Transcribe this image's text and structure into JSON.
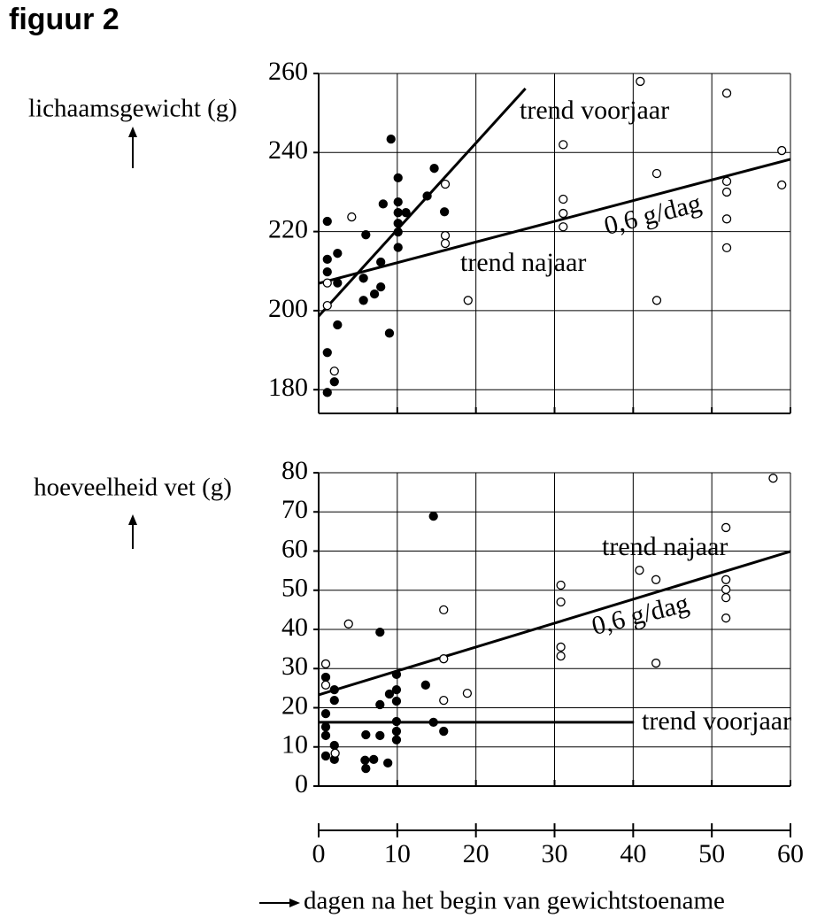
{
  "title": "figuur 2",
  "chart_data": [
    {
      "type": "scatter",
      "y_label": "lichaamsgewicht (g)",
      "xlim": [
        0,
        60
      ],
      "xticks": [
        0,
        10,
        20,
        30,
        40,
        50,
        60
      ],
      "ylim": [
        174,
        260
      ],
      "yticks": [
        180,
        200,
        220,
        240,
        260
      ],
      "grid": true,
      "series": [
        {
          "color": "#000000",
          "filled": true,
          "x": [
            1.1,
            1.1,
            1.1,
            2.4,
            2.4,
            2.4,
            1.1,
            2,
            1.1,
            9.2,
            10.1,
            10.1,
            10.1,
            10.1,
            10.1,
            10.1,
            11.1,
            8.2,
            6,
            13.8,
            14.7,
            16,
            5.7,
            5.7,
            7.1,
            7.9,
            7.9,
            9
          ],
          "values": [
            222.6,
            213,
            209.8,
            214.5,
            207,
            196.4,
            189.4,
            182,
            179.3,
            243.4,
            233.6,
            227.5,
            224.8,
            222.1,
            219.9,
            216,
            224.8,
            227,
            219.2,
            229,
            236,
            225,
            208.2,
            202.6,
            204.2,
            206,
            212.3,
            194.3
          ]
        },
        {
          "color": "#000000",
          "filled": false,
          "x": [
            1.1,
            1.1,
            2,
            4.2,
            16.1,
            16.1,
            16.1,
            19,
            31.1,
            31.1,
            31.1,
            31.1,
            40.9,
            43,
            43,
            51.9,
            51.9,
            51.9,
            51.9,
            51.9,
            58.9,
            58.9
          ],
          "values": [
            207,
            201.3,
            184.7,
            223.7,
            232,
            219,
            217,
            202.6,
            242,
            228.2,
            224.6,
            221.2,
            258,
            234.7,
            202.6,
            255,
            232.7,
            230,
            223.2,
            215.9,
            240.5,
            231.8
          ]
        }
      ],
      "trends": [
        {
          "label": "trend voorjaar",
          "x": [
            0,
            26.3
          ],
          "values": [
            198.6,
            256.2
          ]
        },
        {
          "label": "trend najaar",
          "x": [
            0,
            60
          ],
          "values": [
            206.9,
            238.3
          ]
        }
      ],
      "annotations": [
        "0,6 g/dag"
      ]
    },
    {
      "type": "scatter",
      "y_label": "hoeveelheid vet (g)",
      "x_label": "dagen na het begin van gewichtstoename",
      "xlim": [
        0,
        60
      ],
      "xticks": [
        0,
        10,
        20,
        30,
        40,
        50,
        60
      ],
      "ylim": [
        0,
        80
      ],
      "yticks": [
        0,
        10,
        20,
        30,
        40,
        50,
        60,
        70,
        80
      ],
      "grid": true,
      "series": [
        {
          "color": "#000000",
          "filled": true,
          "x": [
            0.9,
            0.9,
            0.9,
            0.9,
            0.9,
            2,
            2,
            2,
            2,
            6,
            5.9,
            6,
            7,
            7.8,
            7.8,
            7.8,
            8.8,
            9,
            9.9,
            9.9,
            9.9,
            9.9,
            9.9,
            9.9,
            13.6,
            14.6,
            14.6,
            15.9
          ],
          "values": [
            27.8,
            18.5,
            15.1,
            12.9,
            7.7,
            24.6,
            21.9,
            10.4,
            6.8,
            13.1,
            6.6,
            4.5,
            6.8,
            39.3,
            20.8,
            12.9,
            5.9,
            23.5,
            28.5,
            24.6,
            21.7,
            16.5,
            14,
            11.8,
            25.8,
            68.9,
            16.3,
            14
          ]
        },
        {
          "color": "#000000",
          "filled": false,
          "x": [
            0.9,
            0.9,
            2.1,
            3.8,
            15.9,
            15.9,
            15.9,
            18.9,
            30.8,
            30.8,
            30.8,
            30.8,
            40.8,
            42.9,
            42.9,
            51.8,
            51.8,
            51.8,
            51.8,
            51.8,
            57.8
          ],
          "values": [
            31.2,
            25.8,
            8.4,
            41.4,
            45,
            32.5,
            21.9,
            23.7,
            51.3,
            47,
            35.5,
            33.2,
            55.1,
            52.7,
            31.4,
            66,
            52.7,
            50.2,
            48.1,
            42.9,
            78.6
          ]
        }
      ],
      "trends": [
        {
          "label": "trend najaar",
          "x": [
            0,
            60
          ],
          "values": [
            23.3,
            59.9
          ]
        },
        {
          "label": "trend voorjaar",
          "x": [
            0,
            40.1
          ],
          "values": [
            16.3,
            16.3
          ]
        }
      ],
      "annotations": [
        "0,6 g/dag"
      ]
    }
  ]
}
